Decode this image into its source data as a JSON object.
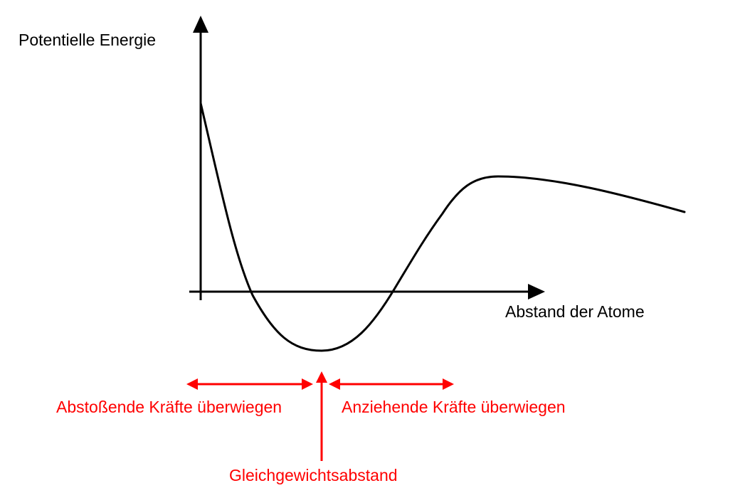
{
  "diagram": {
    "y_axis_label": "Potentielle Energie",
    "x_axis_label": "Abstand der Atome",
    "repulsive_label": "Abstoßende Kräfte überwiegen",
    "attractive_label": "Anziehende Kräfte überwiegen",
    "equilibrium_label": "Gleichgewichtsabstand"
  },
  "colors": {
    "axis": "#000000",
    "curve": "#000000",
    "annotation": "#ff0000",
    "background": "#ffffff"
  }
}
